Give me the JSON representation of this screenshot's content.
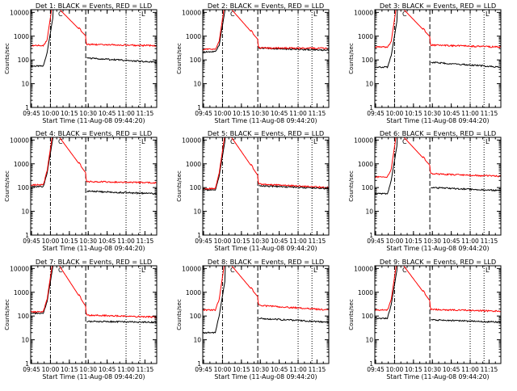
{
  "colors": {
    "events": "#000000",
    "lld": "#ff0000",
    "axes": "#000000"
  },
  "shared": {
    "xlabel": "Start Time (11-Aug-08 09:44:20)",
    "ylabel": "Counts/sec",
    "xticks": [
      "09:45",
      "10:00",
      "10:15",
      "10:30",
      "10:45",
      "11:00",
      "11:15"
    ],
    "yticks": [
      "1",
      "10",
      "100",
      "1000",
      "10000"
    ],
    "legend_marks": [
      "C",
      "L"
    ]
  },
  "chart_data": [
    {
      "type": "line",
      "title": "Det 1: BLACK = Events, RED = LLD",
      "xlabel": "Start Time (11-Aug-08 09:44:20)",
      "ylabel": "Counts/sec",
      "scale": "log",
      "xlim": [
        "09:44:20",
        "11:24"
      ],
      "ylim": [
        1,
        13000
      ],
      "events_peak_min": "10:00",
      "series": [
        {
          "name": "Events",
          "pre": 55,
          "rise": 200,
          "post_start": 120,
          "post_end": 80
        },
        {
          "name": "LLD",
          "pre": 400,
          "rise": 700,
          "post_start": 450,
          "post_end": 400
        }
      ],
      "vlines": [
        {
          "time": "10:00",
          "style": "dash-dot"
        },
        {
          "time": "10:28",
          "style": "dashed"
        },
        {
          "time": "11:00",
          "style": "dotted"
        },
        {
          "time": "11:11",
          "style": "dotted"
        }
      ]
    },
    {
      "type": "line",
      "title": "Det 2: BLACK = Events, RED = LLD",
      "xlabel": "Start Time (11-Aug-08 09:44:20)",
      "ylabel": "Counts/sec",
      "scale": "log",
      "xlim": [
        "09:44:20",
        "11:24"
      ],
      "ylim": [
        1,
        13000
      ],
      "events_peak_min": "10:00",
      "series": [
        {
          "name": "Events",
          "pre": 220,
          "rise": 400,
          "post_start": 320,
          "post_end": 250
        },
        {
          "name": "LLD",
          "pre": 280,
          "rise": 600,
          "post_start": 320,
          "post_end": 310
        }
      ],
      "vlines": [
        {
          "time": "10:00",
          "style": "dash-dot"
        },
        {
          "time": "10:28",
          "style": "dashed"
        },
        {
          "time": "11:00",
          "style": "dotted"
        },
        {
          "time": "11:11",
          "style": "dotted"
        }
      ]
    },
    {
      "type": "line",
      "title": "Det 3: BLACK = Events, RED = LLD",
      "xlabel": "Start Time (11-Aug-08 09:44:20)",
      "ylabel": "Counts/sec",
      "scale": "log",
      "xlim": [
        "09:44:20",
        "11:24"
      ],
      "ylim": [
        1,
        13000
      ],
      "events_peak_min": "10:00",
      "series": [
        {
          "name": "Events",
          "pre": 50,
          "rise": 150,
          "post_start": 80,
          "post_end": 50
        },
        {
          "name": "LLD",
          "pre": 350,
          "rise": 600,
          "post_start": 420,
          "post_end": 350
        }
      ],
      "vlines": [
        {
          "time": "10:00",
          "style": "dash-dot"
        },
        {
          "time": "10:28",
          "style": "dashed"
        },
        {
          "time": "11:00",
          "style": "dotted"
        },
        {
          "time": "11:11",
          "style": "dotted"
        }
      ]
    },
    {
      "type": "line",
      "title": "Det 4: BLACK = Events, RED = LLD",
      "xlabel": "Start Time (11-Aug-08 09:44:20)",
      "ylabel": "Counts/sec",
      "scale": "log",
      "xlim": [
        "09:44:20",
        "11:24"
      ],
      "ylim": [
        1,
        13000
      ],
      "events_peak_min": "10:00",
      "series": [
        {
          "name": "Events",
          "pre": 110,
          "rise": 400,
          "post_start": 70,
          "post_end": 55
        },
        {
          "name": "LLD",
          "pre": 130,
          "rise": 500,
          "post_start": 180,
          "post_end": 160
        }
      ],
      "vlines": [
        {
          "time": "10:00",
          "style": "dash-dot"
        },
        {
          "time": "10:28",
          "style": "dashed"
        },
        {
          "time": "11:00",
          "style": "dotted"
        },
        {
          "time": "11:11",
          "style": "dotted"
        }
      ]
    },
    {
      "type": "line",
      "title": "Det 5: BLACK = Events, RED = LLD",
      "xlabel": "Start Time (11-Aug-08 09:44:20)",
      "ylabel": "Counts/sec",
      "scale": "log",
      "xlim": [
        "09:44:20",
        "11:24"
      ],
      "ylim": [
        1,
        13000
      ],
      "events_peak_min": "10:00",
      "series": [
        {
          "name": "Events",
          "pre": 80,
          "rise": 300,
          "post_start": 120,
          "post_end": 90
        },
        {
          "name": "LLD",
          "pre": 90,
          "rise": 400,
          "post_start": 140,
          "post_end": 100
        }
      ],
      "vlines": [
        {
          "time": "10:00",
          "style": "dash-dot"
        },
        {
          "time": "10:28",
          "style": "dashed"
        },
        {
          "time": "11:00",
          "style": "dotted"
        },
        {
          "time": "11:11",
          "style": "dotted"
        }
      ]
    },
    {
      "type": "line",
      "title": "Det 6: BLACK = Events, RED = LLD",
      "xlabel": "Start Time (11-Aug-08 09:44:20)",
      "ylabel": "Counts/sec",
      "scale": "log",
      "xlim": [
        "09:44:20",
        "11:24"
      ],
      "ylim": [
        1,
        13000
      ],
      "events_peak_min": "10:00",
      "series": [
        {
          "name": "Events",
          "pre": 55,
          "rise": 200,
          "post_start": 100,
          "post_end": 75
        },
        {
          "name": "LLD",
          "pre": 280,
          "rise": 600,
          "post_start": 380,
          "post_end": 300
        }
      ],
      "vlines": [
        {
          "time": "10:00",
          "style": "dash-dot"
        },
        {
          "time": "10:28",
          "style": "dashed"
        },
        {
          "time": "11:00",
          "style": "dotted"
        },
        {
          "time": "11:11",
          "style": "dotted"
        }
      ]
    },
    {
      "type": "line",
      "title": "Det 7: BLACK = Events, RED = LLD",
      "xlabel": "Start Time (11-Aug-08 09:44:20)",
      "ylabel": "Counts/sec",
      "scale": "log",
      "xlim": [
        "09:44:20",
        "11:24"
      ],
      "ylim": [
        1,
        13000
      ],
      "events_peak_min": "10:00",
      "series": [
        {
          "name": "Events",
          "pre": 130,
          "rise": 400,
          "post_start": 60,
          "post_end": 55
        },
        {
          "name": "LLD",
          "pre": 150,
          "rise": 500,
          "post_start": 110,
          "post_end": 90
        }
      ],
      "vlines": [
        {
          "time": "10:00",
          "style": "dash-dot"
        },
        {
          "time": "10:28",
          "style": "dashed"
        },
        {
          "time": "11:00",
          "style": "dotted"
        },
        {
          "time": "11:11",
          "style": "dotted"
        }
      ]
    },
    {
      "type": "line",
      "title": "Det 8: BLACK = Events, RED = LLD",
      "xlabel": "Start Time (11-Aug-08 09:44:20)",
      "ylabel": "Counts/sec",
      "scale": "log",
      "xlim": [
        "09:44:20",
        "11:24"
      ],
      "ylim": [
        1,
        13000
      ],
      "events_peak_min": "10:00",
      "series": [
        {
          "name": "Events",
          "pre": 20,
          "rise": 100,
          "post_start": 80,
          "post_end": 55
        },
        {
          "name": "LLD",
          "pre": 180,
          "rise": 500,
          "post_start": 280,
          "post_end": 180
        }
      ],
      "vlines": [
        {
          "time": "10:00",
          "style": "dash-dot"
        },
        {
          "time": "10:28",
          "style": "dashed"
        },
        {
          "time": "11:00",
          "style": "dotted"
        },
        {
          "time": "11:11",
          "style": "dotted"
        }
      ]
    },
    {
      "type": "line",
      "title": "Det 9: BLACK = Events, RED = LLD",
      "xlabel": "Start Time (11-Aug-08 09:44:20)",
      "ylabel": "Counts/sec",
      "scale": "log",
      "xlim": [
        "09:44:20",
        "11:24"
      ],
      "ylim": [
        1,
        13000
      ],
      "events_peak_min": "10:00",
      "series": [
        {
          "name": "Events",
          "pre": 80,
          "rise": 300,
          "post_start": 70,
          "post_end": 55
        },
        {
          "name": "LLD",
          "pre": 180,
          "rise": 500,
          "post_start": 190,
          "post_end": 160
        }
      ],
      "vlines": [
        {
          "time": "10:00",
          "style": "dash-dot"
        },
        {
          "time": "10:28",
          "style": "dashed"
        },
        {
          "time": "11:00",
          "style": "dotted"
        },
        {
          "time": "11:11",
          "style": "dotted"
        }
      ]
    }
  ]
}
